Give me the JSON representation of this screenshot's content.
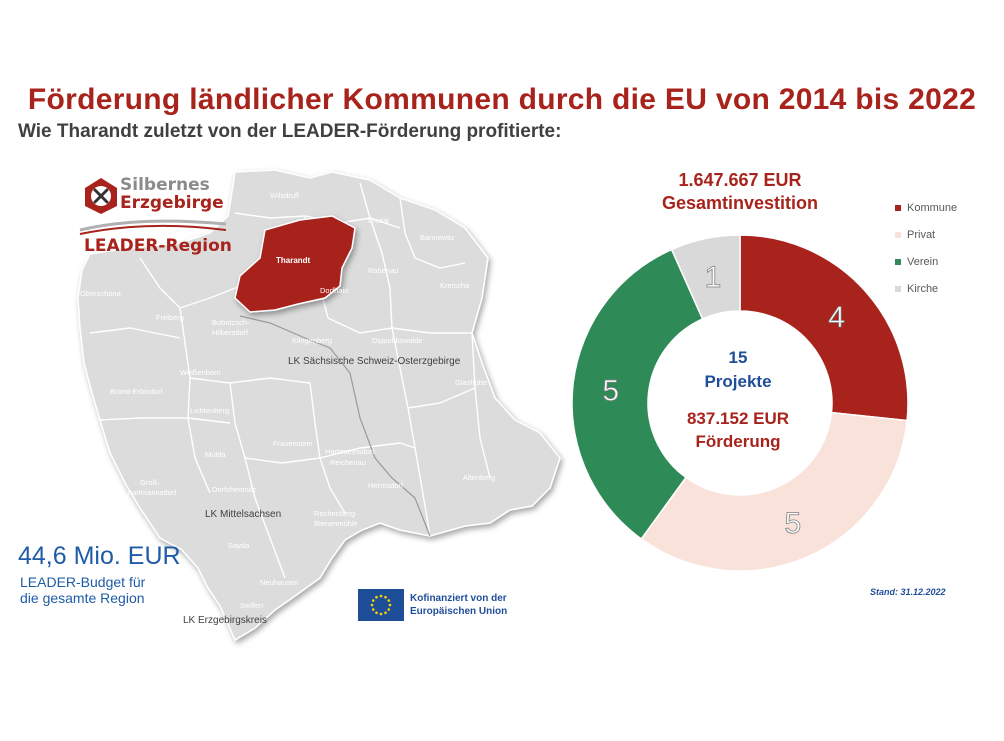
{
  "header": {
    "title": "Förderung ländlicher Kommunen durch die EU von 2014 bis 2022",
    "subtitle": "Wie Tharandt zuletzt von der LEADER-Förderung profitierte:"
  },
  "logo": {
    "line1": "Silbernes",
    "line2": "Erzgebirge",
    "region": "LEADER-Region"
  },
  "map": {
    "highlight_place": "Tharandt",
    "highlight_color": "#a8231c",
    "places": [
      "Wilsdruff",
      "Freital",
      "Bannewitz",
      "Rabenau",
      "Kreischa",
      "Dorfhain",
      "Oberschöna",
      "Freiberg",
      "Bobritzsch-",
      "Hilbersdorf",
      "Klingenberg",
      "Dippoldiswalde",
      "Weißenborn",
      "Brand-Erbisdorf",
      "Glashütte",
      "Lichtenberg",
      "Frauenstein",
      "Mulda",
      "Hartmannsdorf-",
      "Reichenau",
      "Groß-",
      "hartmannsdorf",
      "Dorfchemnitz",
      "Hermsdorf",
      "Altenberg",
      "Rechenberg-",
      "Bienenmühle",
      "Sayda",
      "Neuhausen",
      "Seiffen"
    ],
    "districts": [
      "LK Sächsische Schweiz-Osterzgebirge",
      "LK Mittelsachsen",
      "LK Erzgebirgskreis"
    ]
  },
  "budget": {
    "amount": "44,6 Mio. EUR",
    "line1": "LEADER-Budget für",
    "line2": "die gesamte Region"
  },
  "eu": {
    "line1": "Kofinanziert von der",
    "line2": "Europäischen Union"
  },
  "totals": {
    "investment_amount": "1.647.667 EUR",
    "investment_label": "Gesamtinvestition",
    "project_count": "15",
    "project_label": "Projekte",
    "funding_amount": "837.152 EUR",
    "funding_label": "Förderung"
  },
  "stand": "Stand: 31.12.2022",
  "chart_data": {
    "type": "pie",
    "donut": true,
    "categories": [
      "Kommune",
      "Privat",
      "Verein",
      "Kirche"
    ],
    "values": [
      4,
      5,
      5,
      1
    ],
    "colors": [
      "#a8231c",
      "#f9e2d9",
      "#2e8b57",
      "#d9d9d9"
    ],
    "label_colors": [
      "#ffffff",
      "#ffffff",
      "#ffffff",
      "#ffffff"
    ],
    "legend": "right"
  }
}
